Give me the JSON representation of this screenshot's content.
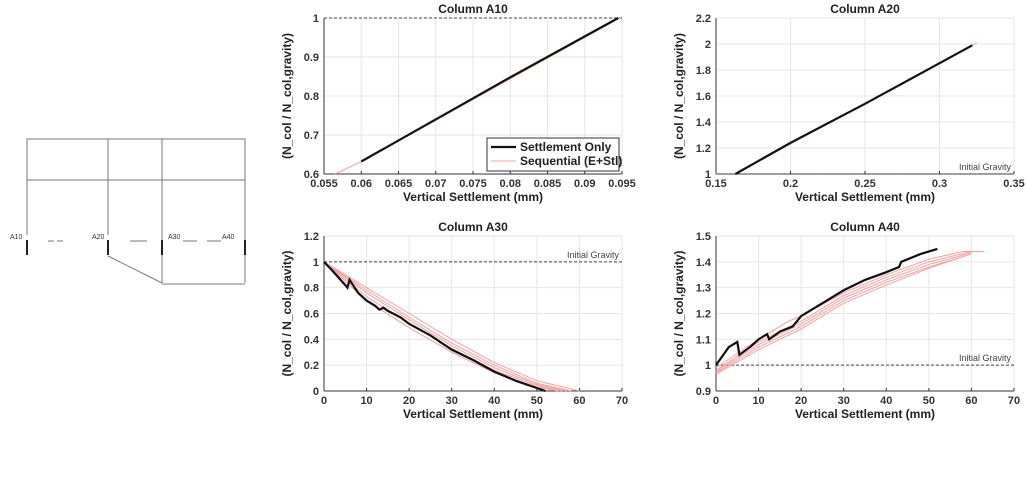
{
  "diagram": {
    "labels": [
      "A10",
      "A20",
      "A30",
      "A40"
    ]
  },
  "legend": {
    "items": [
      {
        "label": "Settlement Only",
        "color": "#111111"
      },
      {
        "label": "Sequential (E+Stl)",
        "color": "#f4a0a0"
      }
    ]
  },
  "ref_label": "Initial Gravity",
  "chart_data": [
    {
      "type": "line",
      "title": "Column A10",
      "xlabel": "Vertical Settlement (mm)",
      "ylabel": "(N_col / N_col,gravity)",
      "xlim": [
        0.055,
        0.095
      ],
      "ylim": [
        0.6,
        1
      ],
      "xticks": [
        "0.055",
        "0.06",
        "0.065",
        "0.07",
        "0.075",
        "0.08",
        "0.085",
        "0.09",
        "0.095"
      ],
      "yticks": [
        "0.6",
        "0.7",
        "0.8",
        "0.9",
        "1"
      ],
      "ref": 1,
      "ref_label_shown": false,
      "legend": "bottom-right",
      "series": [
        {
          "name": "Sequential (E+Stl)",
          "curves": [
            [
              [
                0.0565,
                0.6
              ],
              [
                0.06,
                0.632
              ],
              [
                0.0947,
                1.0
              ]
            ]
          ]
        },
        {
          "name": "Settlement Only",
          "curves": [
            [
              [
                0.06,
                0.632
              ],
              [
                0.07,
                0.74
              ],
              [
                0.08,
                0.848
              ],
              [
                0.0945,
                1.0
              ]
            ]
          ]
        }
      ]
    },
    {
      "type": "line",
      "title": "Column A20",
      "xlabel": "Vertical Settlement (mm)",
      "ylabel": "(N_col / N_col,gravity)",
      "xlim": [
        0.15,
        0.35
      ],
      "ylim": [
        1,
        2.2
      ],
      "xticks": [
        "0.15",
        "0.2",
        "0.25",
        "0.3",
        "0.35"
      ],
      "yticks": [
        "1",
        "1.2",
        "1.4",
        "1.6",
        "1.8",
        "2",
        "2.2"
      ],
      "ref": 1,
      "ref_label_shown": true,
      "series": [
        {
          "name": "Sequential (E+Stl)",
          "curves": [
            [
              [
                0.163,
                1.0
              ],
              [
                0.325,
                2.01
              ]
            ]
          ]
        },
        {
          "name": "Settlement Only",
          "curves": [
            [
              [
                0.163,
                1.0
              ],
              [
                0.2,
                1.24
              ],
              [
                0.25,
                1.54
              ],
              [
                0.322,
                1.99
              ]
            ]
          ]
        }
      ]
    },
    {
      "type": "line",
      "title": "Column A30",
      "xlabel": "Vertical Settlement (mm)",
      "ylabel": "(N_col / N_col,gravity)",
      "xlim": [
        0,
        70
      ],
      "ylim": [
        0,
        1.2
      ],
      "xticks": [
        "0",
        "10",
        "20",
        "30",
        "40",
        "50",
        "60",
        "70"
      ],
      "yticks": [
        "0",
        "0.2",
        "0.4",
        "0.6",
        "0.8",
        "1",
        "1.2"
      ],
      "ref": 1,
      "ref_label_shown": true,
      "series": [
        {
          "name": "Sequential (E+Stl)",
          "curves": [
            [
              [
                0,
                1
              ],
              [
                10,
                0.8
              ],
              [
                20,
                0.6
              ],
              [
                30,
                0.4
              ],
              [
                40,
                0.22
              ],
              [
                50,
                0.08
              ],
              [
                60,
                0
              ]
            ],
            [
              [
                0,
                1
              ],
              [
                10,
                0.78
              ],
              [
                20,
                0.57
              ],
              [
                30,
                0.37
              ],
              [
                40,
                0.2
              ],
              [
                50,
                0.06
              ],
              [
                58,
                0
              ]
            ],
            [
              [
                0,
                1
              ],
              [
                10,
                0.76
              ],
              [
                20,
                0.55
              ],
              [
                30,
                0.35
              ],
              [
                40,
                0.18
              ],
              [
                50,
                0.05
              ],
              [
                57,
                0
              ]
            ],
            [
              [
                0,
                1
              ],
              [
                10,
                0.73
              ],
              [
                20,
                0.52
              ],
              [
                30,
                0.33
              ],
              [
                40,
                0.16
              ],
              [
                50,
                0.04
              ],
              [
                56,
                0
              ]
            ],
            [
              [
                0,
                1
              ],
              [
                10,
                0.7
              ],
              [
                20,
                0.49
              ],
              [
                30,
                0.3
              ],
              [
                40,
                0.14
              ],
              [
                50,
                0.03
              ],
              [
                55,
                0
              ]
            ]
          ]
        },
        {
          "name": "Settlement Only",
          "curves": [
            [
              [
                0,
                1
              ],
              [
                2,
                0.93
              ],
              [
                5,
                0.82
              ],
              [
                5.5,
                0.8
              ],
              [
                6,
                0.86
              ],
              [
                8,
                0.76
              ],
              [
                10,
                0.7
              ],
              [
                12,
                0.66
              ],
              [
                13,
                0.63
              ],
              [
                14,
                0.645
              ],
              [
                15,
                0.62
              ],
              [
                18,
                0.57
              ],
              [
                20,
                0.52
              ],
              [
                25,
                0.43
              ],
              [
                30,
                0.32
              ],
              [
                35,
                0.24
              ],
              [
                40,
                0.15
              ],
              [
                45,
                0.08
              ],
              [
                52,
                0
              ]
            ]
          ]
        }
      ]
    },
    {
      "type": "line",
      "title": "Column A40",
      "xlabel": "Vertical Settlement (mm)",
      "ylabel": "(N_col / N_col,gravity)",
      "xlim": [
        0,
        70
      ],
      "ylim": [
        0.9,
        1.5
      ],
      "xticks": [
        "0",
        "10",
        "20",
        "30",
        "40",
        "50",
        "60",
        "70"
      ],
      "yticks": [
        "0.9",
        "1",
        "1.1",
        "1.2",
        "1.3",
        "1.4",
        "1.5"
      ],
      "ref": 1,
      "ref_label_shown": true,
      "series": [
        {
          "name": "Sequential (E+Stl)",
          "curves": [
            [
              [
                0,
                0.99
              ],
              [
                10,
                1.1
              ],
              [
                17,
                1.17
              ],
              [
                20,
                1.19
              ],
              [
                30,
                1.28
              ],
              [
                40,
                1.35
              ],
              [
                50,
                1.41
              ],
              [
                58,
                1.44
              ],
              [
                63,
                1.44
              ]
            ],
            [
              [
                0,
                0.98
              ],
              [
                10,
                1.09
              ],
              [
                20,
                1.17
              ],
              [
                30,
                1.27
              ],
              [
                40,
                1.34
              ],
              [
                50,
                1.4
              ],
              [
                60,
                1.44
              ]
            ],
            [
              [
                0,
                0.975
              ],
              [
                10,
                1.08
              ],
              [
                20,
                1.16
              ],
              [
                30,
                1.26
              ],
              [
                40,
                1.33
              ],
              [
                50,
                1.39
              ],
              [
                60,
                1.435
              ]
            ],
            [
              [
                0,
                0.97
              ],
              [
                10,
                1.07
              ],
              [
                20,
                1.15
              ],
              [
                30,
                1.25
              ],
              [
                40,
                1.32
              ],
              [
                50,
                1.38
              ],
              [
                60,
                1.43
              ]
            ],
            [
              [
                0,
                0.965
              ],
              [
                10,
                1.06
              ],
              [
                20,
                1.14
              ],
              [
                30,
                1.24
              ],
              [
                40,
                1.31
              ],
              [
                50,
                1.375
              ],
              [
                58,
                1.42
              ]
            ]
          ]
        },
        {
          "name": "Settlement Only",
          "curves": [
            [
              [
                0,
                1
              ],
              [
                3,
                1.07
              ],
              [
                5,
                1.09
              ],
              [
                5.5,
                1.04
              ],
              [
                8,
                1.07
              ],
              [
                10,
                1.1
              ],
              [
                12,
                1.12
              ],
              [
                12.5,
                1.1
              ],
              [
                15,
                1.13
              ],
              [
                18,
                1.15
              ],
              [
                20,
                1.19
              ],
              [
                25,
                1.24
              ],
              [
                30,
                1.29
              ],
              [
                35,
                1.33
              ],
              [
                40,
                1.36
              ],
              [
                43,
                1.38
              ],
              [
                43.5,
                1.4
              ],
              [
                48,
                1.43
              ],
              [
                52,
                1.45
              ]
            ]
          ]
        }
      ]
    }
  ]
}
